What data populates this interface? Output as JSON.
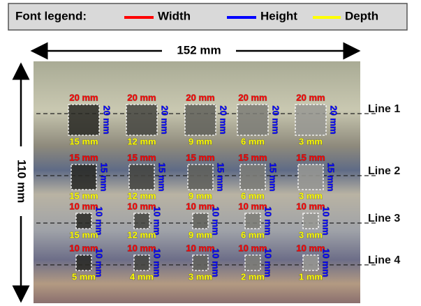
{
  "legend": {
    "title": "Font legend:",
    "items": [
      {
        "label": "Width",
        "color": "#ff0000"
      },
      {
        "label": "Height",
        "color": "#0000ff"
      },
      {
        "label": "Depth",
        "color": "#ffff00"
      }
    ]
  },
  "dimensions": {
    "width": "152 mm",
    "height": "110 mm"
  },
  "rows": [
    {
      "line": "Line 1",
      "holes": [
        {
          "width": "20 mm",
          "height": "20 mm",
          "depth": "15 mm"
        },
        {
          "width": "20 mm",
          "height": "20 mm",
          "depth": "12 mm"
        },
        {
          "width": "20 mm",
          "height": "20 mm",
          "depth": "9 mm"
        },
        {
          "width": "20 mm",
          "height": "20 mm",
          "depth": "6 mm"
        },
        {
          "width": "20 mm",
          "height": "20 mm",
          "depth": "3 mm"
        }
      ]
    },
    {
      "line": "Line 2",
      "holes": [
        {
          "width": "15 mm",
          "height": "15 mm",
          "depth": "15 mm"
        },
        {
          "width": "15 mm",
          "height": "15 mm",
          "depth": "12 mm"
        },
        {
          "width": "15 mm",
          "height": "15 mm",
          "depth": "9 mm"
        },
        {
          "width": "15 mm",
          "height": "15 mm",
          "depth": "6 mm"
        },
        {
          "width": "15 mm",
          "height": "15 mm",
          "depth": "3 mm"
        }
      ]
    },
    {
      "line": "Line 3",
      "holes": [
        {
          "width": "10 mm",
          "height": "10 mm",
          "depth": "15 mm"
        },
        {
          "width": "10 mm",
          "height": "10 mm",
          "depth": "12 mm"
        },
        {
          "width": "10 mm",
          "height": "10 mm",
          "depth": "9 mm"
        },
        {
          "width": "10 mm",
          "height": "10 mm",
          "depth": "6 mm"
        },
        {
          "width": "10 mm",
          "height": "10 mm",
          "depth": "3 mm"
        }
      ]
    },
    {
      "line": "Line 4",
      "holes": [
        {
          "width": "10 mm",
          "height": "10 mm",
          "depth": "5 mm"
        },
        {
          "width": "10 mm",
          "height": "10 mm",
          "depth": "4 mm"
        },
        {
          "width": "10 mm",
          "height": "10 mm",
          "depth": "3 mm"
        },
        {
          "width": "10 mm",
          "height": "10 mm",
          "depth": "2 mm"
        },
        {
          "width": "10 mm",
          "height": "10 mm",
          "depth": "1 mm"
        }
      ]
    }
  ]
}
